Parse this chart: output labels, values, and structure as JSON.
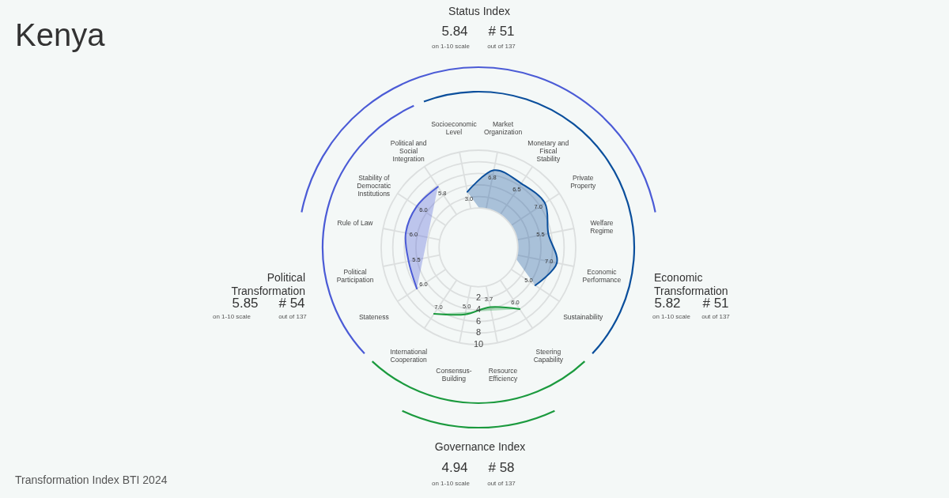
{
  "chart_data": {
    "type": "radar",
    "title": "Kenya",
    "categories": [
      "Socioeconomic Level",
      "Market Organization",
      "Monetary and Fiscal Stability",
      "Private Property",
      "Welfare Regime",
      "Economic Performance",
      "Sustainability",
      "Steering Capability",
      "Resource Efficiency",
      "Consensus-Building",
      "International Cooperation",
      "Stateness",
      "Political Participation",
      "Rule of Law",
      "Stability of Democratic Institutions",
      "Political and Social Integration"
    ],
    "ylim": [
      -6.8,
      10
    ],
    "yticks": [
      2,
      4,
      6,
      8,
      10
    ],
    "grid": true,
    "series": [
      {
        "color": "#0b4f9c",
        "values": [
          3.0,
          6.8,
          6.5,
          7.0,
          5.5,
          7.0,
          5.0,
          null,
          null,
          null,
          null,
          null,
          null,
          null,
          null,
          null
        ],
        "value_labels": [
          "3.0",
          "6.8",
          "6.5",
          "7.0",
          "5.5",
          "7.0",
          "5.0",
          null,
          null,
          null,
          null,
          null,
          null,
          null,
          null,
          null
        ]
      },
      {
        "color": "#1b9a3e",
        "values": [
          null,
          null,
          null,
          null,
          null,
          null,
          null,
          6.0,
          3.7,
          5.0,
          7.0,
          null,
          null,
          null,
          null,
          null
        ],
        "value_labels": [
          null,
          null,
          null,
          null,
          null,
          null,
          null,
          "6.0",
          "3.7",
          "5.0",
          "7.0",
          null,
          null,
          null,
          null,
          null
        ]
      },
      {
        "color": "#4b5bd6",
        "values": [
          null,
          null,
          null,
          null,
          null,
          null,
          null,
          null,
          null,
          null,
          null,
          6.0,
          5.5,
          6.0,
          6.0,
          5.8
        ],
        "value_labels": [
          null,
          null,
          null,
          null,
          null,
          null,
          null,
          null,
          null,
          null,
          null,
          "6.0",
          "5.5",
          "6.0",
          "6.0",
          "5.8"
        ]
      }
    ],
    "annotations": [
      "Status Index",
      "5.84",
      "on 1-10 scale",
      "# 51",
      "out of 137",
      "Political Transformation",
      "5.85",
      "on 1-10 scale",
      "# 54",
      "out of 137",
      "Economic Transformation",
      "5.82",
      "on 1-10 scale",
      "# 51",
      "out of 137",
      "Governance Index",
      "4.94",
      "on 1-10 scale",
      "# 58",
      "out of 137",
      "Transformation Index BTI 2024"
    ]
  }
}
